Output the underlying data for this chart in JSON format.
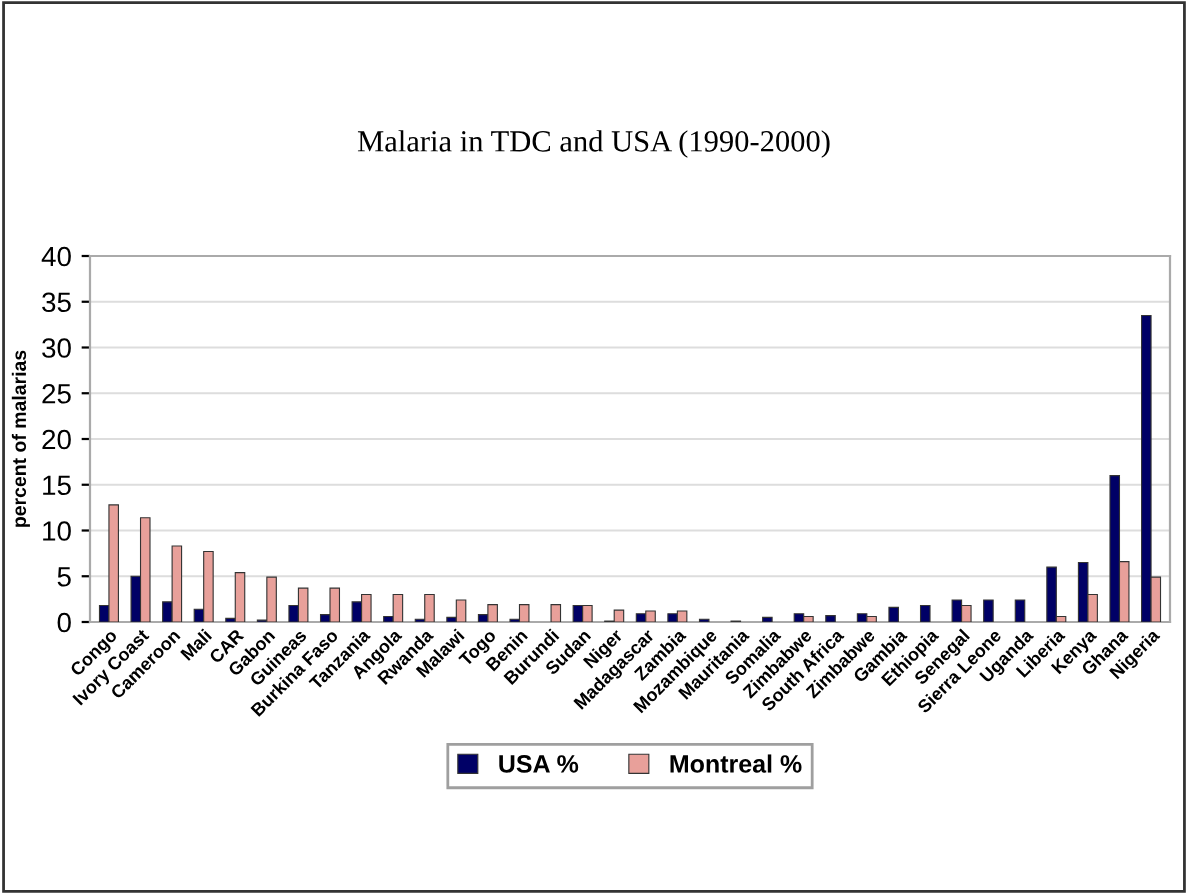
{
  "chart_data": {
    "type": "bar",
    "title": "Malaria in TDC and USA (1990-2000)",
    "ylabel": "percent of malarias",
    "categories": [
      "Congo",
      "Ivory Coast",
      "Cameroon",
      "Mali",
      "CAR",
      "Gabon",
      "Guineas",
      "Burkina Faso",
      "Tanzania",
      "Angola",
      "Rwanda",
      "Malawi",
      "Togo",
      "Benin",
      "Burundi",
      "Sudan",
      "Niger",
      "Madagascar",
      "Zambia",
      "Mozambique",
      "Mauritania",
      "Somalia",
      "Zimbabwe",
      "South Africa",
      "Zimbabwe",
      "Gambia",
      "Ethiopia",
      "Senegal",
      "Sierra Leone",
      "Uganda",
      "Liberia",
      "Kenya",
      "Ghana",
      "Nigeria"
    ],
    "series": [
      {
        "name": "USA %",
        "color": "#000066",
        "values": [
          1.8,
          5.0,
          2.2,
          1.4,
          0.4,
          0.2,
          1.8,
          0.8,
          2.2,
          0.6,
          0.3,
          0.5,
          0.8,
          0.3,
          null,
          1.8,
          0.1,
          0.9,
          0.9,
          0.3,
          0.1,
          0.5,
          0.9,
          0.7,
          0.9,
          1.6,
          1.8,
          2.4,
          2.4,
          2.4,
          6.0,
          6.5,
          16.0,
          33.5
        ]
      },
      {
        "name": "Montreal %",
        "color": "#e8a09a",
        "values": [
          12.8,
          11.4,
          8.3,
          7.7,
          5.4,
          4.9,
          3.7,
          3.7,
          3.0,
          3.0,
          3.0,
          2.4,
          1.9,
          1.9,
          1.9,
          1.8,
          1.3,
          1.2,
          1.2,
          null,
          null,
          null,
          0.6,
          null,
          0.6,
          null,
          null,
          1.8,
          null,
          null,
          0.6,
          3.0,
          6.6,
          4.9
        ]
      }
    ],
    "ylim": [
      0,
      40
    ],
    "yticks": [
      0,
      5,
      10,
      15,
      20,
      25,
      30,
      35,
      40
    ],
    "grid": "y",
    "legend": "bottom"
  }
}
